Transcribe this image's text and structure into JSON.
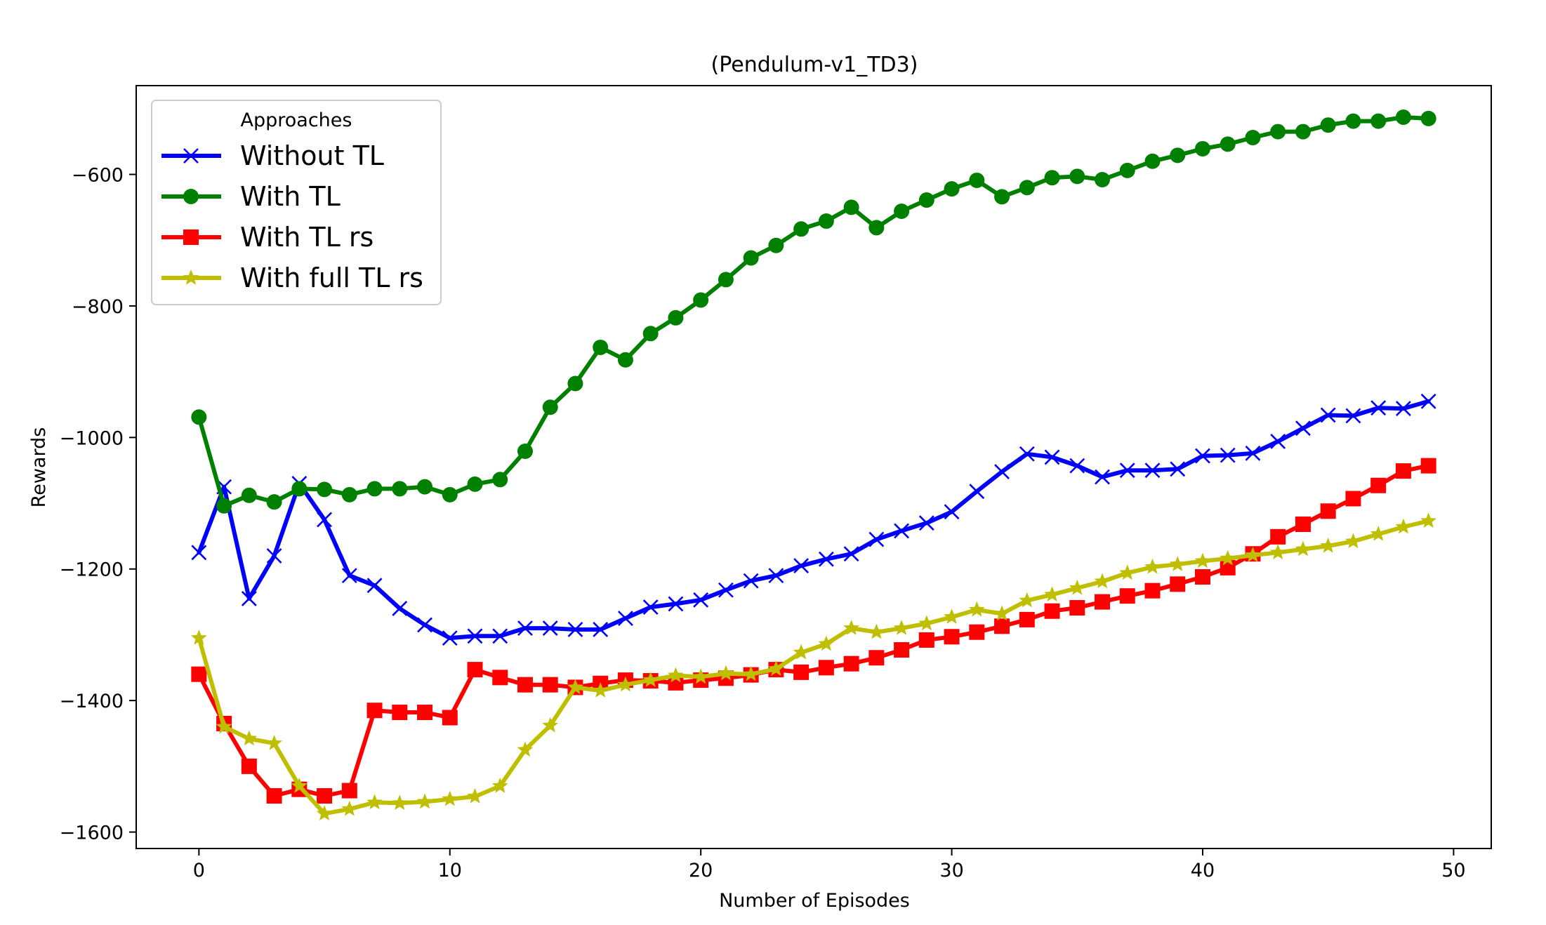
{
  "chart_data": {
    "type": "line",
    "title": "(Pendulum-v1_TD3)",
    "xlabel": "Number of Episodes",
    "ylabel": "Rewards",
    "xlim": [
      -2.5,
      51.5
    ],
    "ylim": [
      -1625,
      -465
    ],
    "xticks": [
      0,
      10,
      20,
      30,
      40,
      50
    ],
    "yticks": [
      -1600,
      -1400,
      -1200,
      -1000,
      -800,
      -600
    ],
    "xtick_labels": [
      "0",
      "10",
      "20",
      "30",
      "40",
      "50"
    ],
    "ytick_labels": [
      "−1600",
      "−1400",
      "−1200",
      "−1000",
      "−800",
      "−600"
    ],
    "grid": false,
    "legend": {
      "title": "Approaches",
      "placement": "top-left"
    },
    "series": [
      {
        "name": "Without TL",
        "color": "#0000ff",
        "marker": "x",
        "values": [
          -1175,
          -1075,
          -1245,
          -1180,
          -1070,
          -1125,
          -1210,
          -1225,
          -1260,
          -1285,
          -1305,
          -1302,
          -1302,
          -1290,
          -1290,
          -1292,
          -1292,
          -1275,
          -1258,
          -1253,
          -1247,
          -1232,
          -1218,
          -1210,
          -1195,
          -1185,
          -1177,
          -1155,
          -1142,
          -1130,
          -1113,
          -1082,
          -1052,
          -1025,
          -1030,
          -1043,
          -1060,
          -1050,
          -1050,
          -1048,
          -1028,
          -1027,
          -1024,
          -1006,
          -986,
          -966,
          -967,
          -955,
          -956,
          -945
        ]
      },
      {
        "name": "With TL",
        "color": "#008000",
        "marker": "o",
        "values": [
          -969,
          -1104,
          -1088,
          -1098,
          -1078,
          -1079,
          -1087,
          -1078,
          -1078,
          -1075,
          -1087,
          -1071,
          -1064,
          -1021,
          -954,
          -918,
          -863,
          -882,
          -842,
          -818,
          -791,
          -760,
          -727,
          -708,
          -683,
          -671,
          -650,
          -681,
          -656,
          -639,
          -622,
          -609,
          -634,
          -620,
          -605,
          -603,
          -608,
          -594,
          -580,
          -571,
          -561,
          -554,
          -544,
          -535,
          -535,
          -525,
          -519,
          -519,
          -513,
          -515
        ]
      },
      {
        "name": "With TL rs",
        "color": "#ff0000",
        "marker": "s",
        "values": [
          -1360,
          -1435,
          -1500,
          -1545,
          -1535,
          -1545,
          -1537,
          -1415,
          -1418,
          -1418,
          -1426,
          -1353,
          -1365,
          -1376,
          -1376,
          -1380,
          -1374,
          -1369,
          -1370,
          -1373,
          -1369,
          -1366,
          -1361,
          -1353,
          -1357,
          -1350,
          -1344,
          -1335,
          -1323,
          -1308,
          -1303,
          -1296,
          -1287,
          -1277,
          -1264,
          -1259,
          -1250,
          -1241,
          -1233,
          -1223,
          -1212,
          -1198,
          -1177,
          -1151,
          -1132,
          -1112,
          -1093,
          -1073,
          -1051,
          -1043
        ]
      },
      {
        "name": "With full TL rs",
        "color": "#bfbf00",
        "marker": "*",
        "values": [
          -1305,
          -1440,
          -1458,
          -1465,
          -1530,
          -1572,
          -1565,
          -1555,
          -1556,
          -1554,
          -1550,
          -1546,
          -1530,
          -1475,
          -1438,
          -1380,
          -1385,
          -1376,
          -1369,
          -1362,
          -1364,
          -1359,
          -1360,
          -1352,
          -1327,
          -1314,
          -1290,
          -1296,
          -1290,
          -1283,
          -1273,
          -1262,
          -1268,
          -1248,
          -1239,
          -1229,
          -1219,
          -1206,
          -1197,
          -1193,
          -1188,
          -1184,
          -1179,
          -1175,
          -1170,
          -1165,
          -1158,
          -1147,
          -1136,
          -1127
        ]
      }
    ]
  }
}
